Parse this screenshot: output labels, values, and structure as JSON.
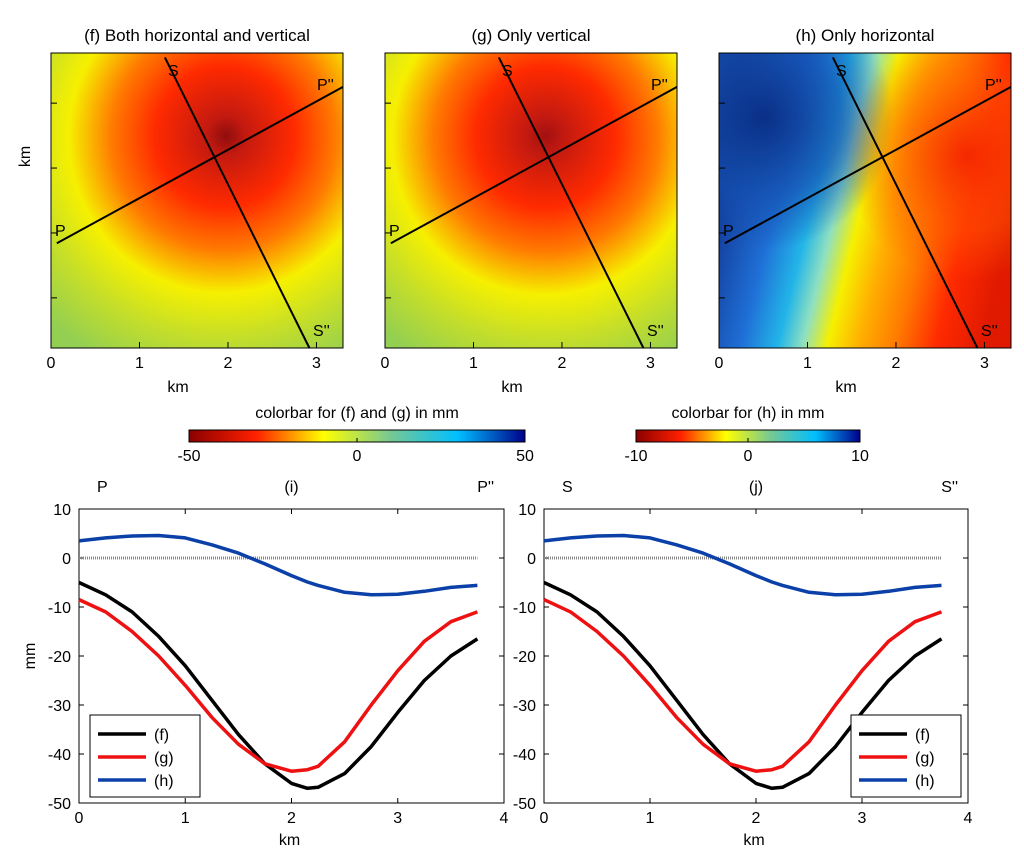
{
  "map_panels": [
    {
      "title": "(f) Both horizontal and vertical",
      "type": "combined",
      "x_axis_label": "km",
      "y_axis_label": "km",
      "profile_labels": {
        "p_start": "P",
        "p_end": "P''",
        "s_start": "S",
        "s_end": "S''"
      }
    },
    {
      "title": "(g) Only vertical",
      "type": "vertical",
      "x_axis_label": "km",
      "y_axis_label": "",
      "profile_labels": {
        "p_start": "P",
        "p_end": "P''",
        "s_start": "S",
        "s_end": "S''"
      }
    },
    {
      "title": "(h) Only horizontal",
      "type": "horizontal",
      "x_axis_label": "km",
      "y_axis_label": "",
      "profile_labels": {
        "p_start": "P",
        "p_end": "P''",
        "s_start": "S",
        "s_end": "S''"
      }
    }
  ],
  "map_axis": {
    "xlim": [
      0,
      3.3
    ],
    "xticks": [
      "0",
      "1",
      "2",
      "3"
    ]
  },
  "colorbars": [
    {
      "label": "colorbar for (f) and (g) in mm",
      "ticks": [
        "-50",
        "0",
        "50"
      ],
      "colors": [
        "#8b0000",
        "#ff2000",
        "#ffff00",
        "#76c893",
        "#00bfff",
        "#00008b"
      ]
    },
    {
      "label": "colorbar for (h) in mm",
      "ticks": [
        "-10",
        "0",
        "10"
      ],
      "colors": [
        "#8b0000",
        "#ff2000",
        "#ffff00",
        "#76c893",
        "#00bfff",
        "#00008b"
      ]
    }
  ],
  "map_colors": {
    "deep_red": "#a31010",
    "red": "#ff2a00",
    "orange": "#ff7a00",
    "yellow": "#f6f000",
    "yellow_green": "#c4de2a",
    "green": "#93cf52",
    "cyan": "#22b5e8",
    "blue": "#0a3a9c",
    "dark_blue": "#0f2f8a",
    "line": "#000000"
  },
  "chart_data": [
    {
      "type": "line",
      "panel_label": "(i)",
      "start_label": "P",
      "end_label": "P''",
      "xlabel": "km",
      "ylabel": "mm",
      "xlim": [
        0,
        4
      ],
      "ylim": [
        -50,
        10
      ],
      "xticks": [
        "0",
        "1",
        "2",
        "3",
        "4"
      ],
      "yticks": [
        "10",
        "0",
        "-10",
        "-20",
        "-30",
        "-40",
        "-50"
      ],
      "x": [
        0,
        0.25,
        0.5,
        0.75,
        1.0,
        1.25,
        1.5,
        1.75,
        2.0,
        2.15,
        2.25,
        2.5,
        2.75,
        3.0,
        3.25,
        3.5,
        3.75
      ],
      "series": [
        {
          "name": "(f)",
          "color": "#000000",
          "values": [
            -5,
            -7.5,
            -11,
            -16,
            -22,
            -29,
            -36,
            -42,
            -46,
            -47,
            -46.8,
            -44,
            -38.5,
            -31.5,
            -25,
            -20,
            -16.5
          ]
        },
        {
          "name": "(g)",
          "color": "#ee1111",
          "values": [
            -8.5,
            -11,
            -15,
            -20,
            -26,
            -32.5,
            -38,
            -42,
            -43.5,
            -43.2,
            -42.5,
            -37.5,
            -30,
            -23,
            -17,
            -13,
            -11
          ]
        },
        {
          "name": "(h)",
          "color": "#0b40a8",
          "values": [
            3.5,
            4.1,
            4.5,
            4.6,
            4.1,
            2.7,
            1.0,
            -1.2,
            -3.6,
            -4.9,
            -5.6,
            -7.0,
            -7.5,
            -7.4,
            -6.8,
            -6.0,
            -5.6
          ]
        }
      ],
      "zero_line": 0,
      "legend": [
        "(f)",
        "(g)",
        "(h)"
      ],
      "legend_position": "bottom-left"
    },
    {
      "type": "line",
      "panel_label": "(j)",
      "start_label": "S",
      "end_label": "S''",
      "xlabel": "km",
      "ylabel": "",
      "xlim": [
        0,
        4
      ],
      "ylim": [
        -50,
        10
      ],
      "xticks": [
        "0",
        "1",
        "2",
        "3",
        "4"
      ],
      "yticks": [
        "10",
        "0",
        "-10",
        "-20",
        "-30",
        "-40",
        "-50"
      ],
      "x": [
        0,
        0.25,
        0.5,
        0.75,
        1.0,
        1.25,
        1.5,
        1.75,
        2.0,
        2.15,
        2.25,
        2.5,
        2.75,
        3.0,
        3.25,
        3.5,
        3.75
      ],
      "series": [
        {
          "name": "(f)",
          "color": "#000000",
          "values": [
            -5,
            -7.5,
            -11,
            -16,
            -22,
            -29,
            -36,
            -42,
            -46,
            -47,
            -46.8,
            -44,
            -38.5,
            -31.5,
            -25,
            -20,
            -16.5
          ]
        },
        {
          "name": "(g)",
          "color": "#ee1111",
          "values": [
            -8.5,
            -11,
            -15,
            -20,
            -26,
            -32.5,
            -38,
            -42,
            -43.5,
            -43.2,
            -42.5,
            -37.5,
            -30,
            -23,
            -17,
            -13,
            -11
          ]
        },
        {
          "name": "(h)",
          "color": "#0b40a8",
          "values": [
            3.5,
            4.1,
            4.5,
            4.6,
            4.1,
            2.7,
            1.0,
            -1.2,
            -3.6,
            -4.9,
            -5.6,
            -7.0,
            -7.5,
            -7.4,
            -6.8,
            -6.0,
            -5.6
          ]
        }
      ],
      "zero_line": 0,
      "legend": [
        "(f)",
        "(g)",
        "(h)"
      ],
      "legend_position": "bottom-right"
    }
  ]
}
